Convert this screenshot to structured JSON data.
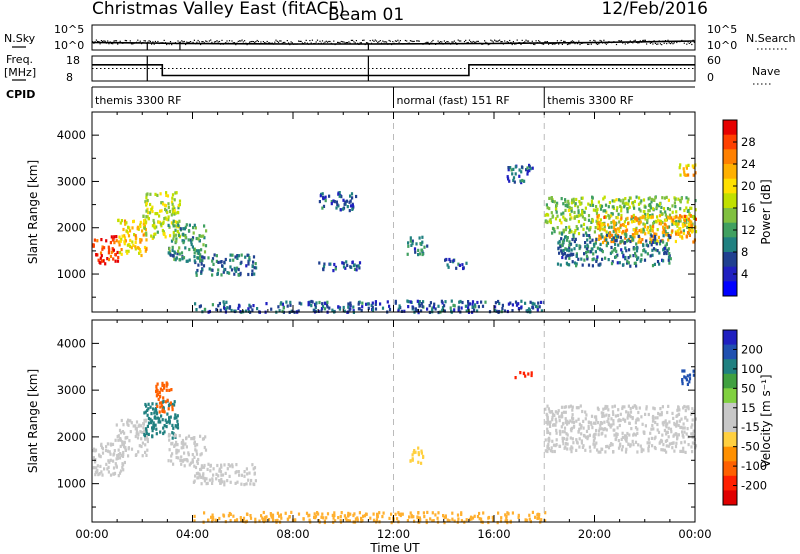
{
  "header": {
    "station": "Christmas Valley East (fitACF)",
    "beam": "Beam 01",
    "date": "12/Feb/2016"
  },
  "strips": {
    "nsky_label": "N.Sky",
    "nsky_ticks": [
      "10^5",
      "10^0"
    ],
    "nsearch_label": "N.Search",
    "freq_label_line1": "Freq.",
    "freq_label_line2": "[MHz]",
    "freq_ticks": [
      "18",
      "8"
    ],
    "nave_ticks": [
      "60",
      "0"
    ],
    "nave_label": "Nave",
    "cpid_label": "CPID",
    "cpid_segments": [
      {
        "label": "themis 3300 RF",
        "start_h": 0,
        "end_h": 12
      },
      {
        "label": "normal (fast) 151 RF",
        "start_h": 12,
        "end_h": 18
      },
      {
        "label": "themis 3300 RF",
        "start_h": 18,
        "end_h": 24
      }
    ]
  },
  "xaxis": {
    "label": "Time UT",
    "tick_labels": [
      "00:00",
      "04:00",
      "08:00",
      "12:00",
      "16:00",
      "20:00",
      "00:00"
    ]
  },
  "power_colorbar": {
    "label": "Power [dB]",
    "tick_labels": [
      "28",
      "24",
      "20",
      "16",
      "12",
      "8",
      "4"
    ],
    "colors": [
      "#e60000",
      "#ff4000",
      "#ff8000",
      "#ffb000",
      "#ffe000",
      "#c0e000",
      "#80c040",
      "#40a060",
      "#208080",
      "#204090",
      "#2020c0",
      "#0000ff"
    ]
  },
  "velocity_colorbar": {
    "label": "Velocity [m s⁻¹]",
    "tick_labels": [
      "200",
      "100",
      "50",
      "15",
      "-15",
      "-50",
      "-100",
      "-200"
    ],
    "colors": [
      "#2020c0",
      "#2050b0",
      "#208080",
      "#40a040",
      "#80d040",
      "#c8c8c8",
      "#c8c8c8",
      "#ffd040",
      "#ff9000",
      "#ff6000",
      "#ff2000",
      "#e00000"
    ]
  },
  "colors": {
    "dashed_marker": "#bbbbbb",
    "ground_scatter_velocity": "#ffb030"
  },
  "chart_data": [
    {
      "type": "heatmap",
      "panel": "power",
      "title": "",
      "xlabel": "",
      "ylabel": "Slant Range [km]",
      "x_unit": "hours UT",
      "xlim": [
        0,
        24
      ],
      "ylim": [
        180,
        4500
      ],
      "y_tick_labels": [
        "1000",
        "2000",
        "3000",
        "4000"
      ],
      "y_tick_values": [
        1000,
        2000,
        3000,
        4000
      ],
      "colorbar": "Power [dB]",
      "vertical_markers_h": [
        12,
        18
      ],
      "scatter_regions": [
        {
          "x": [
            0.0,
            1.0
          ],
          "y": [
            1250,
            1850
          ],
          "value": 28
        },
        {
          "x": [
            1.0,
            2.2
          ],
          "y": [
            1400,
            2200
          ],
          "value": 20
        },
        {
          "x": [
            2.0,
            3.5
          ],
          "y": [
            1800,
            2800
          ],
          "value": 16
        },
        {
          "x": [
            3.0,
            4.5
          ],
          "y": [
            1300,
            2100
          ],
          "value": 10
        },
        {
          "x": [
            4.0,
            6.5
          ],
          "y": [
            1000,
            1450
          ],
          "value": 8
        },
        {
          "x": [
            9.0,
            10.5
          ],
          "y": [
            2400,
            2800
          ],
          "value": 6
        },
        {
          "x": [
            9.0,
            10.8
          ],
          "y": [
            1100,
            1300
          ],
          "value": 6
        },
        {
          "x": [
            12.5,
            13.3
          ],
          "y": [
            1450,
            1850
          ],
          "value": 8
        },
        {
          "x": [
            14.0,
            15.0
          ],
          "y": [
            1150,
            1350
          ],
          "value": 6
        },
        {
          "x": [
            4.0,
            18.0
          ],
          "y": [
            200,
            450
          ],
          "value": 6
        },
        {
          "x": [
            16.5,
            17.5
          ],
          "y": [
            3000,
            3400
          ],
          "value": 6
        },
        {
          "x": [
            18.0,
            24.0
          ],
          "y": [
            1900,
            2700
          ],
          "value": 14
        },
        {
          "x": [
            20.0,
            24.0
          ],
          "y": [
            1700,
            2300
          ],
          "value": 22
        },
        {
          "x": [
            18.5,
            23.0
          ],
          "y": [
            1200,
            1900
          ],
          "value": 8
        },
        {
          "x": [
            23.3,
            24.0
          ],
          "y": [
            3150,
            3450
          ],
          "value": 20
        }
      ]
    },
    {
      "type": "heatmap",
      "panel": "velocity",
      "title": "",
      "xlabel": "Time UT",
      "ylabel": "Slant Range [km]",
      "x_unit": "hours UT",
      "xlim": [
        0,
        24
      ],
      "ylim": [
        180,
        4500
      ],
      "y_tick_labels": [
        "1000",
        "2000",
        "3000",
        "4000"
      ],
      "y_tick_values": [
        1000,
        2000,
        3000,
        4000
      ],
      "colorbar": "Velocity [m s⁻¹]",
      "vertical_markers_h": [
        12,
        18
      ],
      "scatter_regions": [
        {
          "x": [
            0.0,
            1.3
          ],
          "y": [
            1200,
            1900
          ],
          "value": 0
        },
        {
          "x": [
            0.8,
            2.2
          ],
          "y": [
            1600,
            2400
          ],
          "value": 0
        },
        {
          "x": [
            2.0,
            3.4
          ],
          "y": [
            2000,
            2800
          ],
          "value": 150
        },
        {
          "x": [
            2.5,
            3.2
          ],
          "y": [
            2500,
            3200
          ],
          "value": -150
        },
        {
          "x": [
            3.0,
            4.5
          ],
          "y": [
            1400,
            2100
          ],
          "value": 30
        },
        {
          "x": [
            4.0,
            6.5
          ],
          "y": [
            1000,
            1450
          ],
          "value": 30
        },
        {
          "x": [
            12.6,
            13.2
          ],
          "y": [
            1450,
            1800
          ],
          "value": -70
        },
        {
          "x": [
            4.0,
            18.0
          ],
          "y": [
            200,
            420
          ],
          "value": -30
        },
        {
          "x": [
            16.8,
            17.5
          ],
          "y": [
            3300,
            3450
          ],
          "value": -200
        },
        {
          "x": [
            18.0,
            24.0
          ],
          "y": [
            1700,
            2700
          ],
          "value": 0
        },
        {
          "x": [
            23.4,
            24.0
          ],
          "y": [
            3150,
            3450
          ],
          "value": 200
        }
      ]
    },
    {
      "type": "line",
      "panel": "noise",
      "xlabel": "",
      "xlim": [
        0,
        24
      ],
      "series": [
        {
          "name": "N.Sky",
          "x": [
            0,
            2.2,
            3.5,
            8,
            11,
            16,
            20,
            24
          ],
          "y": [
            1.5,
            1.4,
            1.3,
            1.2,
            1.2,
            1.3,
            1.5,
            1.8
          ]
        },
        {
          "name": "N.Search",
          "x": [
            0,
            24
          ],
          "y": [
            1.3,
            1.3
          ]
        }
      ]
    },
    {
      "type": "line",
      "panel": "frequency",
      "xlabel": "",
      "xlim": [
        0,
        24
      ],
      "series": [
        {
          "name": "Freq.",
          "x": [
            0,
            2.8,
            2.8,
            15,
            15,
            24
          ],
          "y": [
            14.5,
            14.5,
            10.2,
            10.2,
            14.5,
            14.5
          ]
        },
        {
          "name": "Nave",
          "x": [
            0,
            24
          ],
          "y": [
            30,
            30
          ]
        }
      ]
    }
  ]
}
